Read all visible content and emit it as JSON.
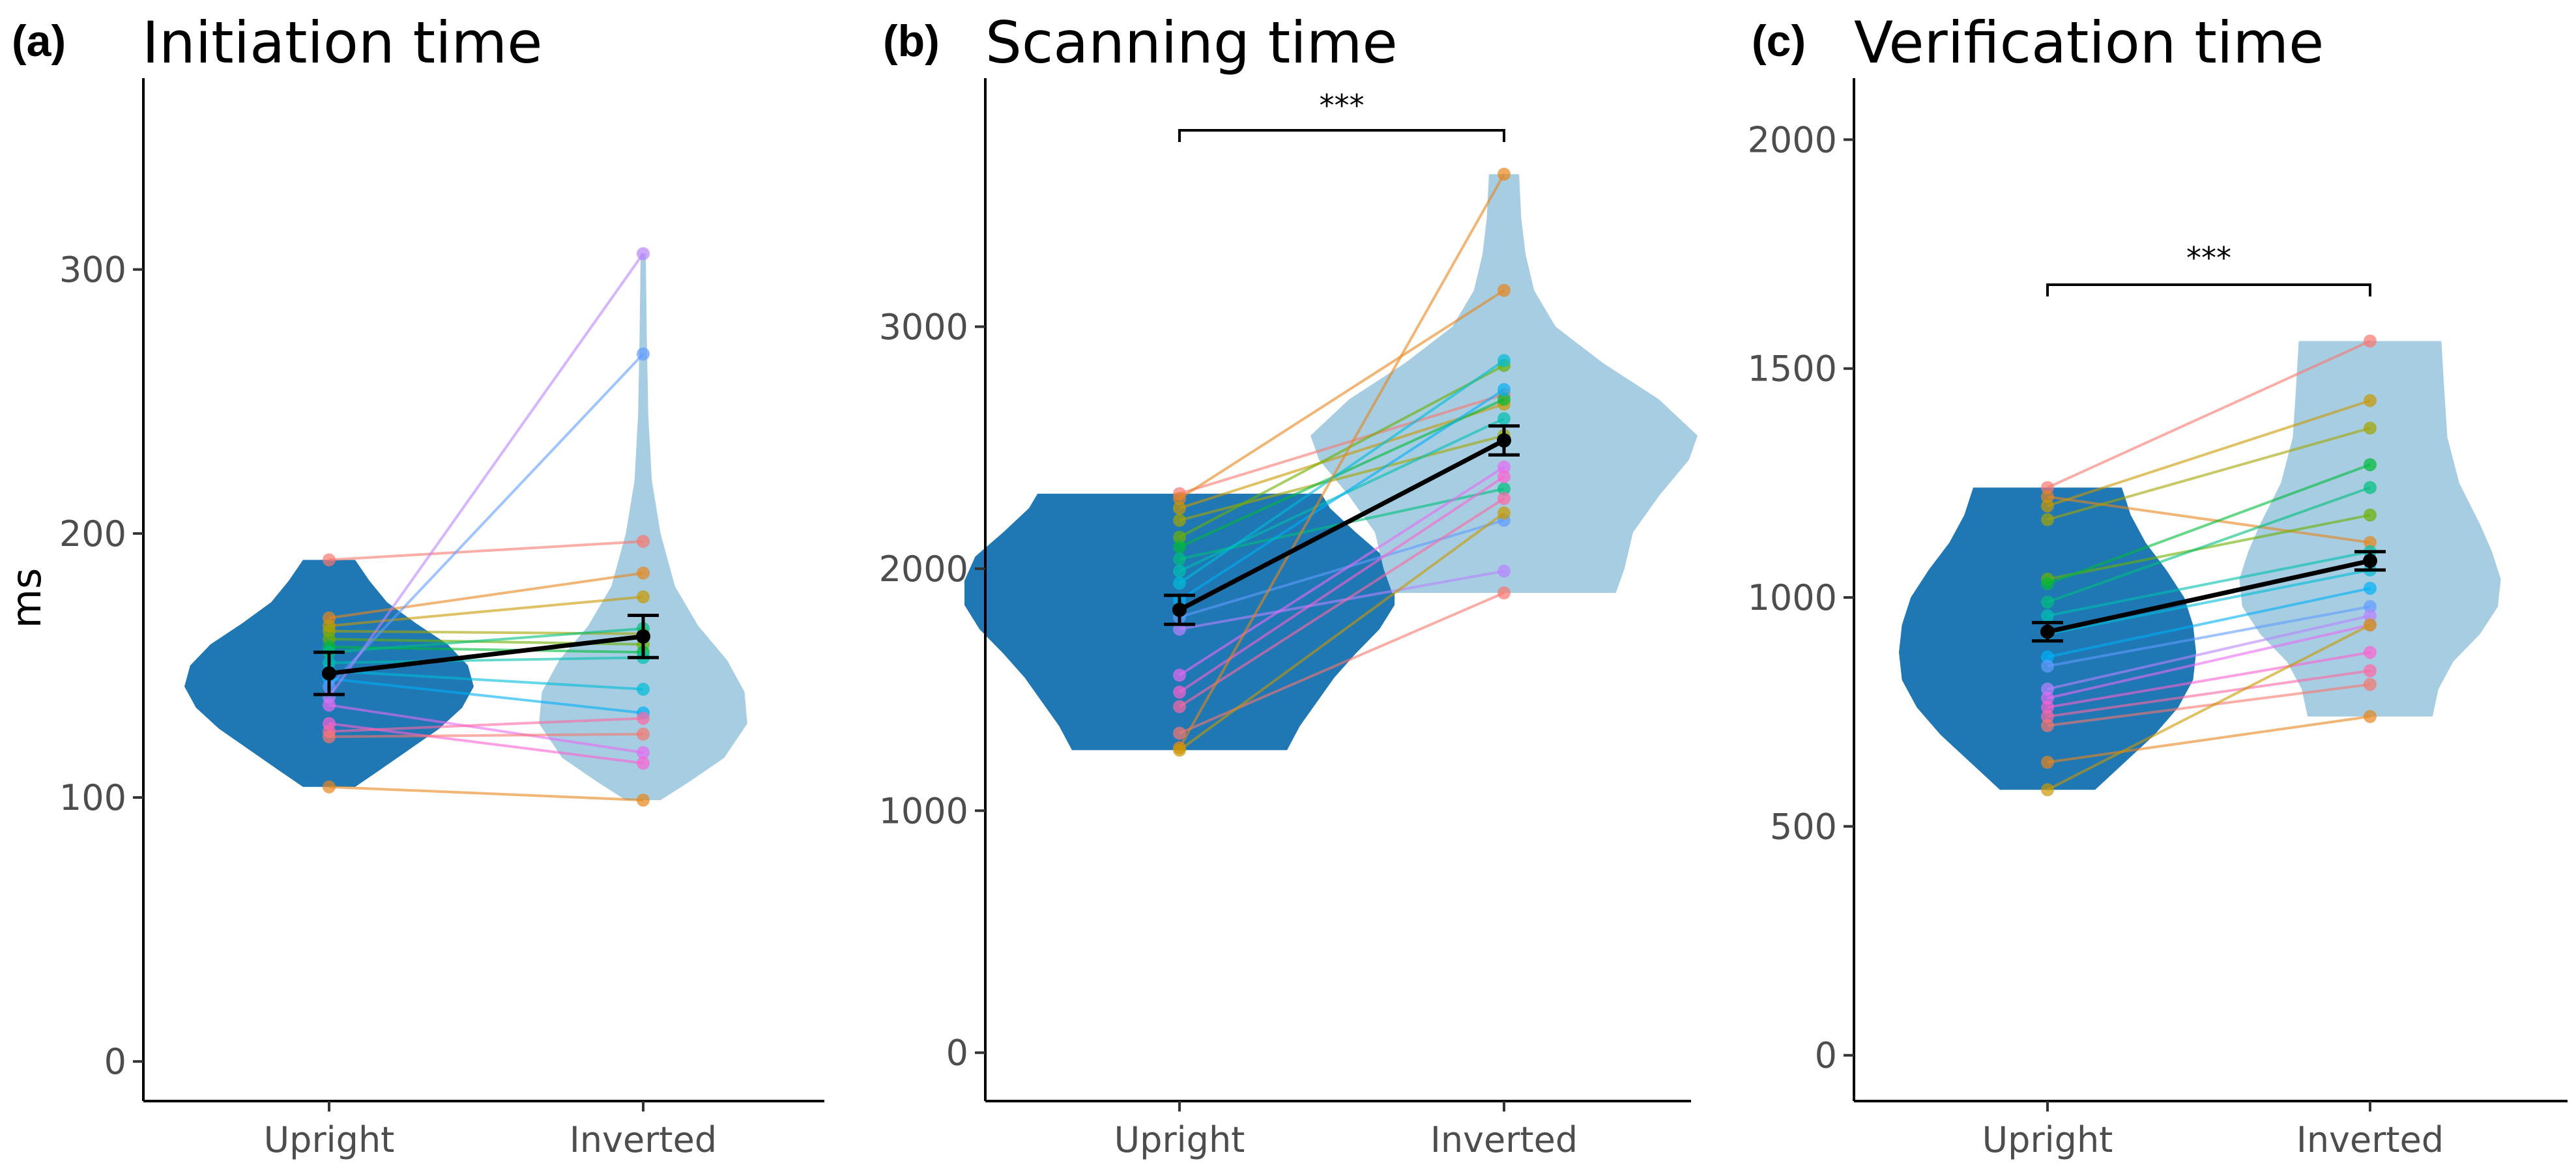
{
  "figure": {
    "ylabel": "ms",
    "colors": {
      "upright_violin": "#1f77b4",
      "inverted_violin": "#a6cde2",
      "mean_line": "#000000",
      "participant_palette": [
        "#f8766d",
        "#e7861b",
        "#c99800",
        "#a3a500",
        "#6bb100",
        "#00ba38",
        "#00bf7d",
        "#00c0af",
        "#00bcd8",
        "#00b0f6",
        "#619cff",
        "#b983ff",
        "#e76bf3",
        "#fd61d1",
        "#ff67a4"
      ]
    }
  },
  "chart_data": [
    {
      "type": "violin-paired",
      "panel_letter": "(a)",
      "title": "Initiation time",
      "categories": [
        "Upright",
        "Inverted"
      ],
      "ylabel": "ms",
      "ylim": [
        -15,
        370
      ],
      "yticks": [
        0,
        100,
        200,
        300
      ],
      "significance": "",
      "mean": [
        147,
        161
      ],
      "error": [
        8,
        8
      ],
      "participants": [
        {
          "upright": 190,
          "inverted": 197
        },
        {
          "upright": 168,
          "inverted": 185
        },
        {
          "upright": 165,
          "inverted": 176
        },
        {
          "upright": 163,
          "inverted": 162
        },
        {
          "upright": 160,
          "inverted": 158
        },
        {
          "upright": 157,
          "inverted": 155
        },
        {
          "upright": 155,
          "inverted": 164
        },
        {
          "upright": 151,
          "inverted": 153
        },
        {
          "upright": 148,
          "inverted": 141
        },
        {
          "upright": 145,
          "inverted": 132
        },
        {
          "upright": 142,
          "inverted": 268
        },
        {
          "upright": 138,
          "inverted": 306
        },
        {
          "upright": 135,
          "inverted": 117
        },
        {
          "upright": 128,
          "inverted": 113
        },
        {
          "upright": 125,
          "inverted": 130
        },
        {
          "upright": 123,
          "inverted": 124
        },
        {
          "upright": 104,
          "inverted": 99
        }
      ],
      "violins": {
        "upright": {
          "ymin": 104,
          "ymax": 190,
          "profile": [
            [
              104,
              0.18
            ],
            [
              110,
              0.34
            ],
            [
              118,
              0.55
            ],
            [
              126,
              0.76
            ],
            [
              134,
              0.92
            ],
            [
              142,
              1.0
            ],
            [
              150,
              0.96
            ],
            [
              158,
              0.82
            ],
            [
              166,
              0.6
            ],
            [
              174,
              0.4
            ],
            [
              182,
              0.28
            ],
            [
              190,
              0.18
            ]
          ]
        },
        "inverted": {
          "ymin": 99,
          "ymax": 306,
          "profile": [
            [
              99,
              0.12
            ],
            [
              106,
              0.32
            ],
            [
              115,
              0.56
            ],
            [
              128,
              0.72
            ],
            [
              140,
              0.7
            ],
            [
              152,
              0.58
            ],
            [
              165,
              0.38
            ],
            [
              180,
              0.22
            ],
            [
              200,
              0.12
            ],
            [
              220,
              0.06
            ],
            [
              245,
              0.035
            ],
            [
              275,
              0.025
            ],
            [
              306,
              0.018
            ]
          ]
        }
      }
    },
    {
      "type": "violin-paired",
      "panel_letter": "(b)",
      "title": "Scanning time",
      "categories": [
        "Upright",
        "Inverted"
      ],
      "ylabel": "",
      "ylim": [
        -200,
        4000
      ],
      "yticks": [
        0,
        1000,
        2000,
        3000
      ],
      "significance": "***",
      "mean": [
        1830,
        2530
      ],
      "error": [
        60,
        60
      ],
      "participants": [
        {
          "upright": 2310,
          "inverted": 2720
        },
        {
          "upright": 2290,
          "inverted": 3150
        },
        {
          "upright": 2250,
          "inverted": 2680
        },
        {
          "upright": 2200,
          "inverted": 2550
        },
        {
          "upright": 2130,
          "inverted": 2840
        },
        {
          "upright": 2090,
          "inverted": 2700
        },
        {
          "upright": 2040,
          "inverted": 2330
        },
        {
          "upright": 1990,
          "inverted": 2620
        },
        {
          "upright": 1940,
          "inverted": 2860
        },
        {
          "upright": 1870,
          "inverted": 2740
        },
        {
          "upright": 1800,
          "inverted": 2200
        },
        {
          "upright": 1750,
          "inverted": 1990
        },
        {
          "upright": 1560,
          "inverted": 2420
        },
        {
          "upright": 1490,
          "inverted": 2380
        },
        {
          "upright": 1430,
          "inverted": 2290
        },
        {
          "upright": 1320,
          "inverted": 1900
        },
        {
          "upright": 1260,
          "inverted": 3630
        },
        {
          "upright": 1250,
          "inverted": 2230
        }
      ],
      "violins": {
        "upright": {
          "ymin": 1250,
          "ymax": 2310,
          "profile": [
            [
              1250,
              0.5
            ],
            [
              1350,
              0.56
            ],
            [
              1450,
              0.64
            ],
            [
              1550,
              0.72
            ],
            [
              1650,
              0.82
            ],
            [
              1750,
              0.93
            ],
            [
              1850,
              1.0
            ],
            [
              1950,
              1.0
            ],
            [
              2050,
              0.95
            ],
            [
              2150,
              0.82
            ],
            [
              2250,
              0.7
            ],
            [
              2310,
              0.66
            ]
          ]
        },
        "inverted": {
          "ymin": 1900,
          "ymax": 3630,
          "profile": [
            [
              1900,
              0.52
            ],
            [
              2000,
              0.56
            ],
            [
              2150,
              0.6
            ],
            [
              2300,
              0.72
            ],
            [
              2450,
              0.86
            ],
            [
              2550,
              0.9
            ],
            [
              2700,
              0.72
            ],
            [
              2850,
              0.46
            ],
            [
              3000,
              0.24
            ],
            [
              3150,
              0.14
            ],
            [
              3300,
              0.1
            ],
            [
              3450,
              0.08
            ],
            [
              3630,
              0.07
            ]
          ]
        }
      }
    },
    {
      "type": "violin-paired",
      "panel_letter": "(c)",
      "title": "Verification time",
      "categories": [
        "Upright",
        "Inverted"
      ],
      "ylabel": "",
      "ylim": [
        -100,
        2120
      ],
      "yticks": [
        0,
        500,
        1000,
        1500,
        2000
      ],
      "significance": "***",
      "mean": [
        925,
        1080
      ],
      "error": [
        20,
        20
      ],
      "participants": [
        {
          "upright": 1240,
          "inverted": 1560
        },
        {
          "upright": 1220,
          "inverted": 1120
        },
        {
          "upright": 1200,
          "inverted": 1430
        },
        {
          "upright": 1170,
          "inverted": 1370
        },
        {
          "upright": 1040,
          "inverted": 1180
        },
        {
          "upright": 1030,
          "inverted": 1290
        },
        {
          "upright": 990,
          "inverted": 1240
        },
        {
          "upright": 960,
          "inverted": 1100
        },
        {
          "upright": 920,
          "inverted": 1060
        },
        {
          "upright": 870,
          "inverted": 1020
        },
        {
          "upright": 850,
          "inverted": 980
        },
        {
          "upright": 800,
          "inverted": 960
        },
        {
          "upright": 780,
          "inverted": 940
        },
        {
          "upright": 760,
          "inverted": 880
        },
        {
          "upright": 740,
          "inverted": 840
        },
        {
          "upright": 720,
          "inverted": 810
        },
        {
          "upright": 640,
          "inverted": 740
        },
        {
          "upright": 580,
          "inverted": 940
        }
      ],
      "violins": {
        "upright": {
          "ymin": 580,
          "ymax": 1240,
          "profile": [
            [
              580,
              0.32
            ],
            [
              640,
              0.52
            ],
            [
              700,
              0.72
            ],
            [
              760,
              0.88
            ],
            [
              820,
              0.98
            ],
            [
              880,
              1.0
            ],
            [
              940,
              0.98
            ],
            [
              1000,
              0.92
            ],
            [
              1060,
              0.8
            ],
            [
              1120,
              0.66
            ],
            [
              1180,
              0.56
            ],
            [
              1240,
              0.5
            ]
          ]
        },
        "inverted": {
          "ymin": 740,
          "ymax": 1560,
          "profile": [
            [
              740,
              0.42
            ],
            [
              800,
              0.46
            ],
            [
              860,
              0.56
            ],
            [
              920,
              0.74
            ],
            [
              980,
              0.86
            ],
            [
              1040,
              0.88
            ],
            [
              1100,
              0.82
            ],
            [
              1160,
              0.74
            ],
            [
              1250,
              0.6
            ],
            [
              1350,
              0.52
            ],
            [
              1450,
              0.5
            ],
            [
              1560,
              0.48
            ]
          ]
        }
      }
    }
  ]
}
